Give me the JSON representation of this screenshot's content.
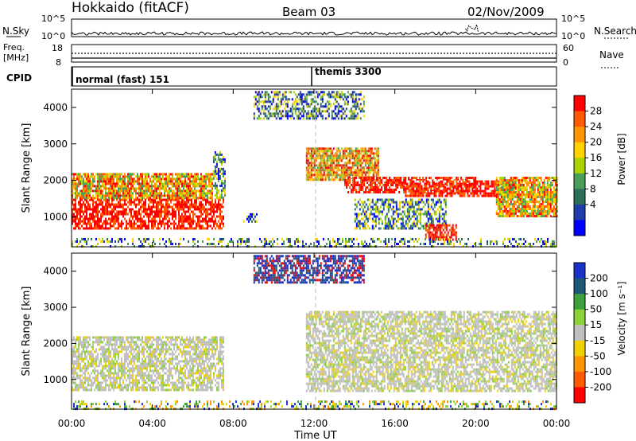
{
  "header": {
    "station": "Hokkaido (fitACF)",
    "beam": "Beam 03",
    "date": "02/Nov/2009"
  },
  "top_panels": {
    "nsky_label": "N.Sky",
    "nsky_ticks": [
      "10^5",
      "10^0"
    ],
    "nsearch_label": "N.Search",
    "nsearch_ticks": [
      "10^5",
      "10^0"
    ],
    "freq_label_1": "Freq.",
    "freq_label_2": "[MHz]",
    "freq_ticks": [
      "18",
      "8"
    ],
    "nave_label": "Nave",
    "nave_ticks": [
      "60",
      "0"
    ],
    "cpid_label": "CPID",
    "cpid_segments": [
      {
        "label": "normal (fast) 151",
        "start_hour": 0
      },
      {
        "label": "themis 3300",
        "start_hour": 12
      }
    ]
  },
  "axes": {
    "x_label": "Time UT",
    "x_ticks": [
      "00:00",
      "04:00",
      "08:00",
      "12:00",
      "16:00",
      "20:00",
      "00:00"
    ],
    "y_label": "Slant Range [km]",
    "y_ticks": [
      "1000",
      "2000",
      "3000",
      "4000"
    ]
  },
  "power_colorbar": {
    "label": "Power [dB]",
    "ticks": [
      "28",
      "24",
      "20",
      "16",
      "12",
      "8",
      "4"
    ],
    "colors": [
      "#ff0000",
      "#ff5a00",
      "#ff9600",
      "#ffd200",
      "#a8d200",
      "#4a9e5a",
      "#2d6e5a",
      "#1e3caa",
      "#0000ff"
    ]
  },
  "velocity_colorbar": {
    "label": "Velocity [m s⁻¹]",
    "ticks": [
      "200",
      "100",
      "50",
      "15",
      "-15",
      "-50",
      "-100",
      "-200"
    ],
    "colors": [
      "#1a32c8",
      "#1e5a78",
      "#3ca03c",
      "#8cd23c",
      "#c0c0c0",
      "#f0d200",
      "#ff9600",
      "#ff5a00",
      "#ff0000"
    ]
  },
  "chart_data": {
    "type": "heatmap",
    "x_range_hours": [
      0,
      24
    ],
    "y_range_km": [
      180,
      4500
    ],
    "power_regions": [
      {
        "t0": 0.0,
        "t1": 7.5,
        "r0": 700,
        "r1": 1500,
        "level": "high"
      },
      {
        "t0": 0.0,
        "t1": 7.0,
        "r0": 1500,
        "r1": 2200,
        "level": "mid"
      },
      {
        "t0": 7.0,
        "t1": 7.6,
        "r0": 1500,
        "r1": 2800,
        "level": "low"
      },
      {
        "t0": 8.5,
        "t1": 9.2,
        "r0": 850,
        "r1": 1100,
        "level": "low"
      },
      {
        "t0": 9.0,
        "t1": 14.5,
        "r0": 3700,
        "r1": 4450,
        "level": "low"
      },
      {
        "t0": 11.6,
        "t1": 15.2,
        "r0": 2000,
        "r1": 2900,
        "level": "mid"
      },
      {
        "t0": 13.5,
        "t1": 20.0,
        "r0": 1700,
        "r1": 2100,
        "level": "high"
      },
      {
        "t0": 16.5,
        "t1": 22.0,
        "r0": 1600,
        "r1": 2000,
        "level": "high"
      },
      {
        "t0": 21.0,
        "t1": 24.0,
        "r0": 1000,
        "r1": 2100,
        "level": "mid"
      },
      {
        "t0": 14.0,
        "t1": 18.5,
        "r0": 700,
        "r1": 1500,
        "level": "low"
      },
      {
        "t0": 17.5,
        "t1": 19.0,
        "r0": 350,
        "r1": 800,
        "level": "high"
      },
      {
        "t0": 0.0,
        "t1": 24.0,
        "r0": 180,
        "r1": 420,
        "level": "floor"
      }
    ],
    "velocity_regions": [
      {
        "t0": 0.0,
        "t1": 7.5,
        "r0": 700,
        "r1": 2200,
        "class": "low"
      },
      {
        "t0": 11.6,
        "t1": 24.0,
        "r0": 700,
        "r1": 2900,
        "class": "low"
      },
      {
        "t0": 9.0,
        "t1": 14.5,
        "r0": 3700,
        "r1": 4450,
        "class": "positive-high"
      },
      {
        "t0": 0.0,
        "t1": 24.0,
        "r0": 180,
        "r1": 420,
        "class": "mixed"
      }
    ]
  }
}
